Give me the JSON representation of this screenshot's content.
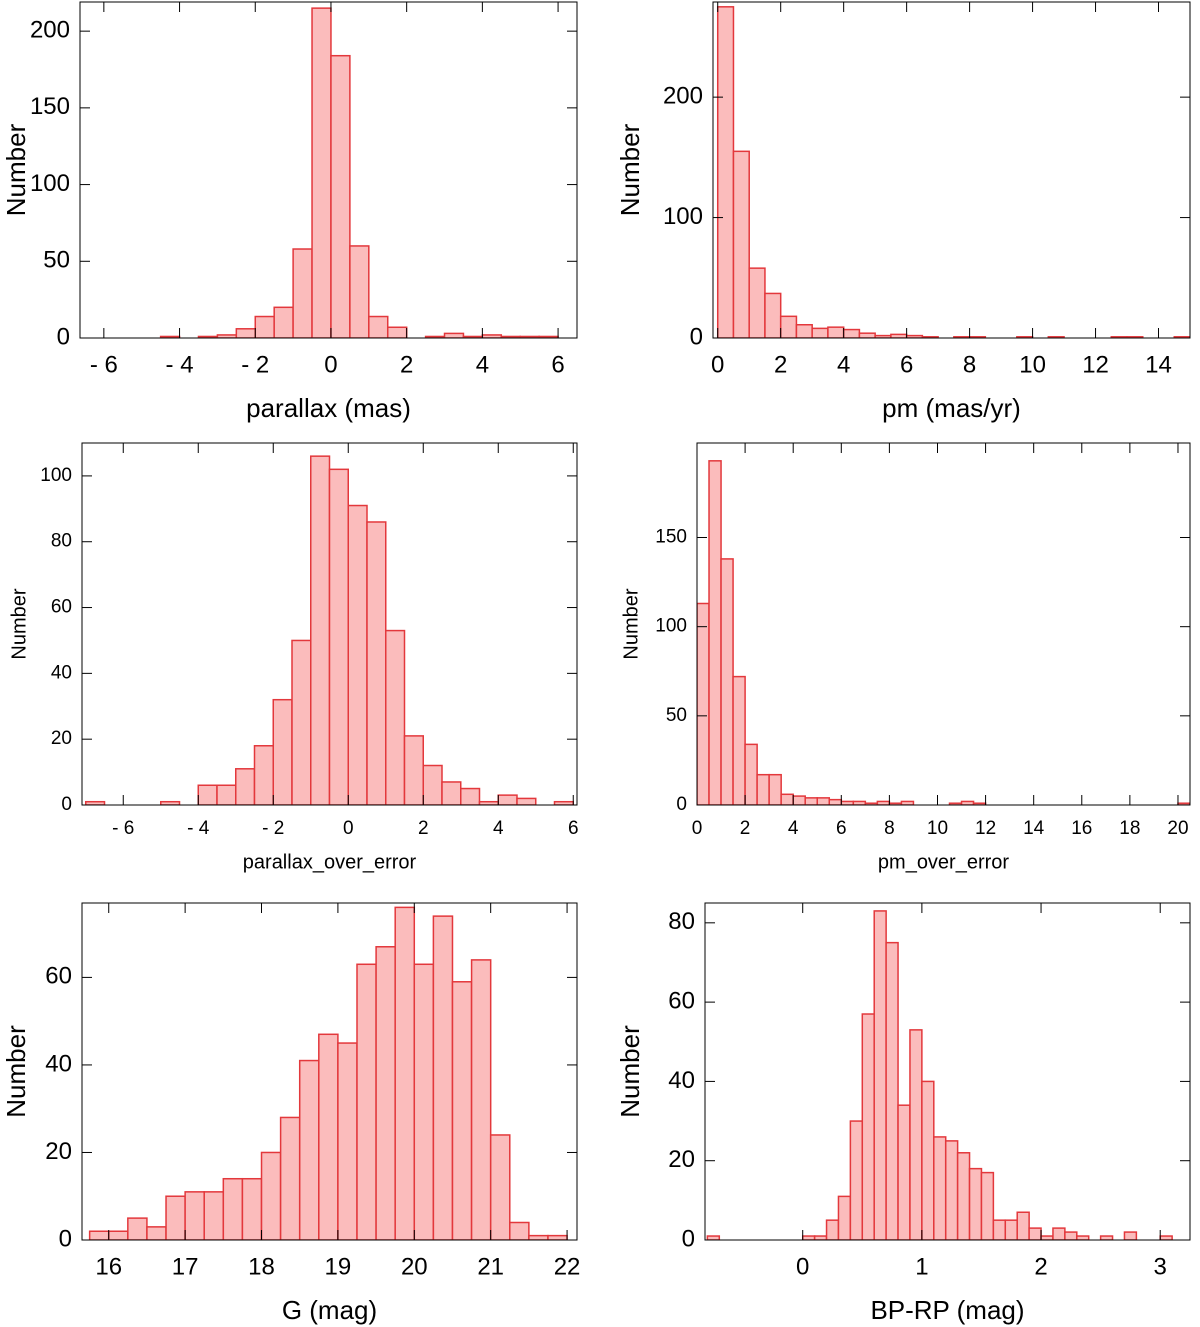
{
  "chart_data": [
    {
      "type": "histogram",
      "xlabel": "parallax (mas)",
      "ylabel": "Number",
      "color": "#fbbcbc",
      "edgecolor": "#e3383c",
      "bins": [
        -6.5,
        -6,
        -5.5,
        -5,
        -4.5,
        -4,
        -3.5,
        -3,
        -2.5,
        -2,
        -1.5,
        -1,
        -0.5,
        0,
        0.5,
        1,
        1.5,
        2,
        2.5,
        3,
        3.5,
        4,
        4.5,
        5,
        5.5,
        6,
        6.5
      ],
      "counts": [
        0,
        0,
        0,
        0,
        1,
        0,
        1,
        2,
        6,
        14,
        20,
        58,
        215,
        184,
        60,
        14,
        7,
        0,
        1,
        3,
        1,
        2,
        1,
        1,
        1,
        0
      ],
      "xlim": [
        -6.63,
        6.5
      ],
      "ylim": [
        0,
        219
      ],
      "xticks": [
        {
          "value": -6,
          "label": "- 6"
        },
        {
          "value": -4,
          "label": "- 4"
        },
        {
          "value": -2,
          "label": "- 2"
        },
        0,
        2,
        4,
        6
      ],
      "yticks": [
        0,
        50,
        100,
        150,
        200
      ]
    },
    {
      "type": "histogram",
      "xlabel": "pm (mas/yr)",
      "ylabel": "Number",
      "color": "#fbbcbc",
      "edgecolor": "#e3383c",
      "bins": [
        0,
        0.5,
        1,
        1.5,
        2,
        2.5,
        3,
        3.5,
        4,
        4.5,
        5,
        5.5,
        6,
        6.5,
        7,
        7.5,
        8,
        8.5,
        9,
        9.5,
        10,
        10.5,
        11,
        11.5,
        12,
        12.5,
        13,
        13.5,
        14,
        14.5,
        15
      ],
      "counts": [
        275,
        155,
        58,
        37,
        18,
        11,
        8,
        9,
        7,
        4,
        2,
        3,
        2,
        1,
        0,
        1,
        1,
        0,
        0,
        1,
        0,
        1,
        0,
        0,
        0,
        1,
        1,
        0,
        0,
        1
      ],
      "xlim": [
        -0.15,
        15
      ],
      "ylim": [
        0,
        279
      ],
      "xticks": [
        0,
        2,
        4,
        6,
        8,
        10,
        12,
        14
      ],
      "yticks": [
        0,
        100,
        200
      ]
    },
    {
      "type": "histogram",
      "xlabel": "parallax_over_error",
      "ylabel": "Number",
      "color": "#fbbcbc",
      "edgecolor": "#e3383c",
      "bins": [
        -7,
        -6.5,
        -6,
        -5.5,
        -5,
        -4.5,
        -4,
        -3.5,
        -3,
        -2.5,
        -2,
        -1.5,
        -1,
        -0.5,
        0,
        0.5,
        1,
        1.5,
        2,
        2.5,
        3,
        3.5,
        4,
        4.5,
        5,
        5.5,
        6
      ],
      "counts": [
        1,
        0,
        0,
        0,
        1,
        0,
        6,
        6,
        11,
        18,
        32,
        50,
        106,
        102,
        91,
        86,
        53,
        21,
        12,
        7,
        5,
        1,
        3,
        2,
        0,
        1
      ],
      "xlim": [
        -7.1,
        6.1
      ],
      "ylim": [
        0,
        110
      ],
      "xticks": [
        {
          "value": -6,
          "label": "- 6"
        },
        {
          "value": -4,
          "label": "- 4"
        },
        {
          "value": -2,
          "label": "- 2"
        },
        0,
        2,
        4,
        6
      ],
      "yticks": [
        0,
        20,
        40,
        60,
        80,
        100
      ]
    },
    {
      "type": "histogram",
      "xlabel": "pm_over_error",
      "ylabel": "Number",
      "color": "#fbbcbc",
      "edgecolor": "#e3383c",
      "bins": [
        0,
        0.5,
        1,
        1.5,
        2,
        2.5,
        3,
        3.5,
        4,
        4.5,
        5,
        5.5,
        6,
        6.5,
        7,
        7.5,
        8,
        8.5,
        9,
        9.5,
        10,
        10.5,
        11,
        11.5,
        12,
        12.5,
        13,
        13.5,
        14,
        14.5,
        15,
        15.5,
        16,
        16.5,
        17,
        17.5,
        18,
        18.5,
        19,
        19.5,
        20,
        20.5
      ],
      "counts": [
        113,
        193,
        138,
        72,
        34,
        17,
        17,
        6,
        5,
        4,
        4,
        3,
        2,
        2,
        1,
        2,
        1,
        2,
        0,
        0,
        0,
        1,
        2,
        1,
        0,
        0,
        0,
        0,
        0,
        0,
        0,
        0,
        0,
        0,
        0,
        0,
        0,
        0,
        0,
        0,
        1
      ],
      "xlim": [
        0,
        20.5
      ],
      "ylim": [
        0,
        203
      ],
      "xticks": [
        0,
        2,
        4,
        6,
        8,
        10,
        12,
        14,
        16,
        18,
        20
      ],
      "yticks": [
        0,
        50,
        100,
        150
      ]
    },
    {
      "type": "histogram",
      "xlabel": "G (mag)",
      "ylabel": "Number",
      "color": "#fbbcbc",
      "edgecolor": "#e3383c",
      "bins": [
        15.75,
        16,
        16.25,
        16.5,
        16.75,
        17,
        17.25,
        17.5,
        17.75,
        18,
        18.25,
        18.5,
        18.75,
        19,
        19.25,
        19.5,
        19.75,
        20,
        20.25,
        20.5,
        20.75,
        21,
        21.25,
        21.5,
        21.75,
        22
      ],
      "counts": [
        2,
        2,
        5,
        3,
        10,
        11,
        11,
        14,
        14,
        20,
        28,
        41,
        47,
        45,
        63,
        67,
        76,
        63,
        74,
        59,
        64,
        24,
        4,
        1,
        1
      ],
      "xlim": [
        15.65,
        22.13
      ],
      "ylim": [
        0,
        77
      ],
      "xticks": [
        16,
        17,
        18,
        19,
        20,
        21,
        22
      ],
      "yticks": [
        0,
        20,
        40,
        60
      ]
    },
    {
      "type": "histogram",
      "xlabel": "BP-RP (mag)",
      "ylabel": "Number",
      "color": "#fbbcbc",
      "edgecolor": "#e3383c",
      "bins": [
        -0.8,
        -0.7,
        -0.6,
        -0.5,
        -0.4,
        -0.3,
        -0.2,
        -0.1,
        0,
        0.1,
        0.2,
        0.3,
        0.4,
        0.5,
        0.6,
        0.7,
        0.8,
        0.9,
        1,
        1.1,
        1.2,
        1.3,
        1.4,
        1.5,
        1.6,
        1.7,
        1.8,
        1.9,
        2,
        2.1,
        2.2,
        2.3,
        2.4,
        2.5,
        2.6,
        2.7,
        2.8,
        2.9,
        3,
        3.1
      ],
      "counts": [
        1,
        0,
        0,
        0,
        0,
        0,
        0,
        0,
        1,
        1,
        5,
        11,
        30,
        57,
        83,
        75,
        34,
        53,
        40,
        26,
        25,
        22,
        18,
        17,
        5,
        5,
        7,
        3,
        1,
        3,
        2,
        1,
        0,
        1,
        0,
        2,
        0,
        0,
        1
      ],
      "xlim": [
        -0.82,
        3.25
      ],
      "ylim": [
        0,
        85
      ],
      "xticks": [
        0,
        1,
        2,
        3
      ],
      "yticks": [
        0,
        20,
        40,
        60,
        80
      ]
    }
  ]
}
